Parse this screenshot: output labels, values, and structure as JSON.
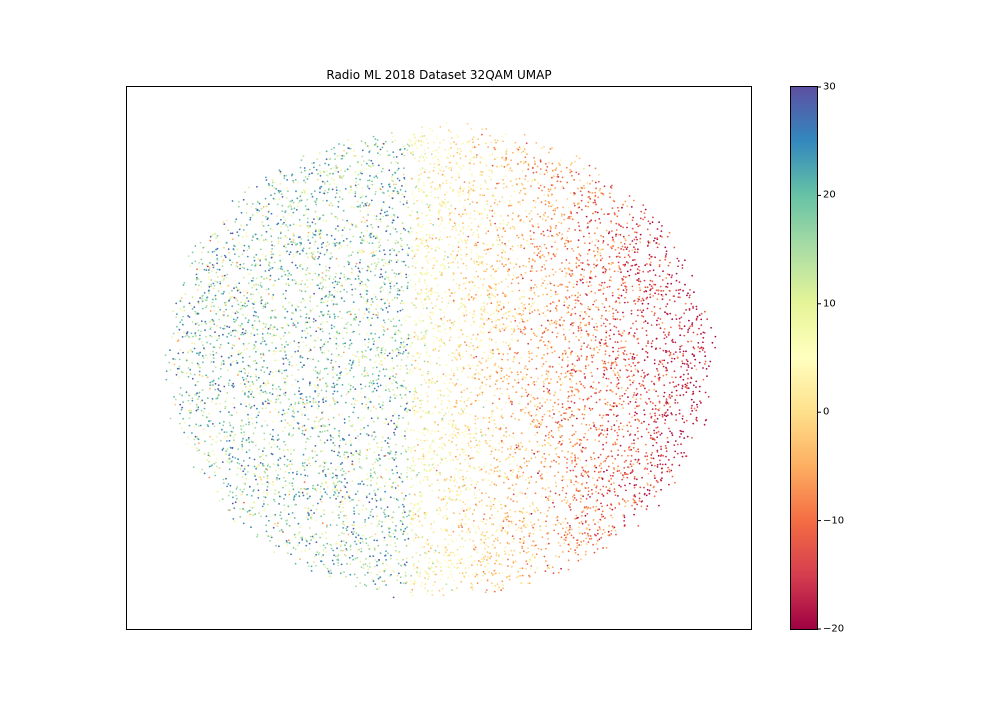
{
  "chart_data": {
    "type": "scatter",
    "title": "Radio ML 2018 Dataset 32QAM UMAP",
    "xlabel": "",
    "ylabel": "",
    "x_ticks_visible": false,
    "y_ticks_visible": false,
    "grid": false,
    "colormap": "Spectral",
    "color_scale": {
      "label": "",
      "min": -20,
      "max": 30,
      "ticks": [
        -20,
        -10,
        0,
        10,
        20,
        30
      ],
      "tick_labels": [
        "−20",
        "−10",
        "0",
        "10",
        "20",
        "30"
      ]
    },
    "color_stops": [
      "#9e0142",
      "#d53e4f",
      "#f46d43",
      "#fdae61",
      "#fee08b",
      "#ffffbf",
      "#e6f598",
      "#abdda4",
      "#66c2a5",
      "#3288bd",
      "#5e4fa2"
    ],
    "clusters": [
      {
        "description": "high SNR (blue/teal) on left side",
        "snr_range": [
          10,
          30
        ]
      },
      {
        "description": "mid SNR (yellow/orange) in centre-right",
        "snr_range": [
          -8,
          8
        ]
      },
      {
        "description": "low SNR (red/crimson) on right side",
        "snr_range": [
          -20,
          -8
        ]
      }
    ]
  }
}
